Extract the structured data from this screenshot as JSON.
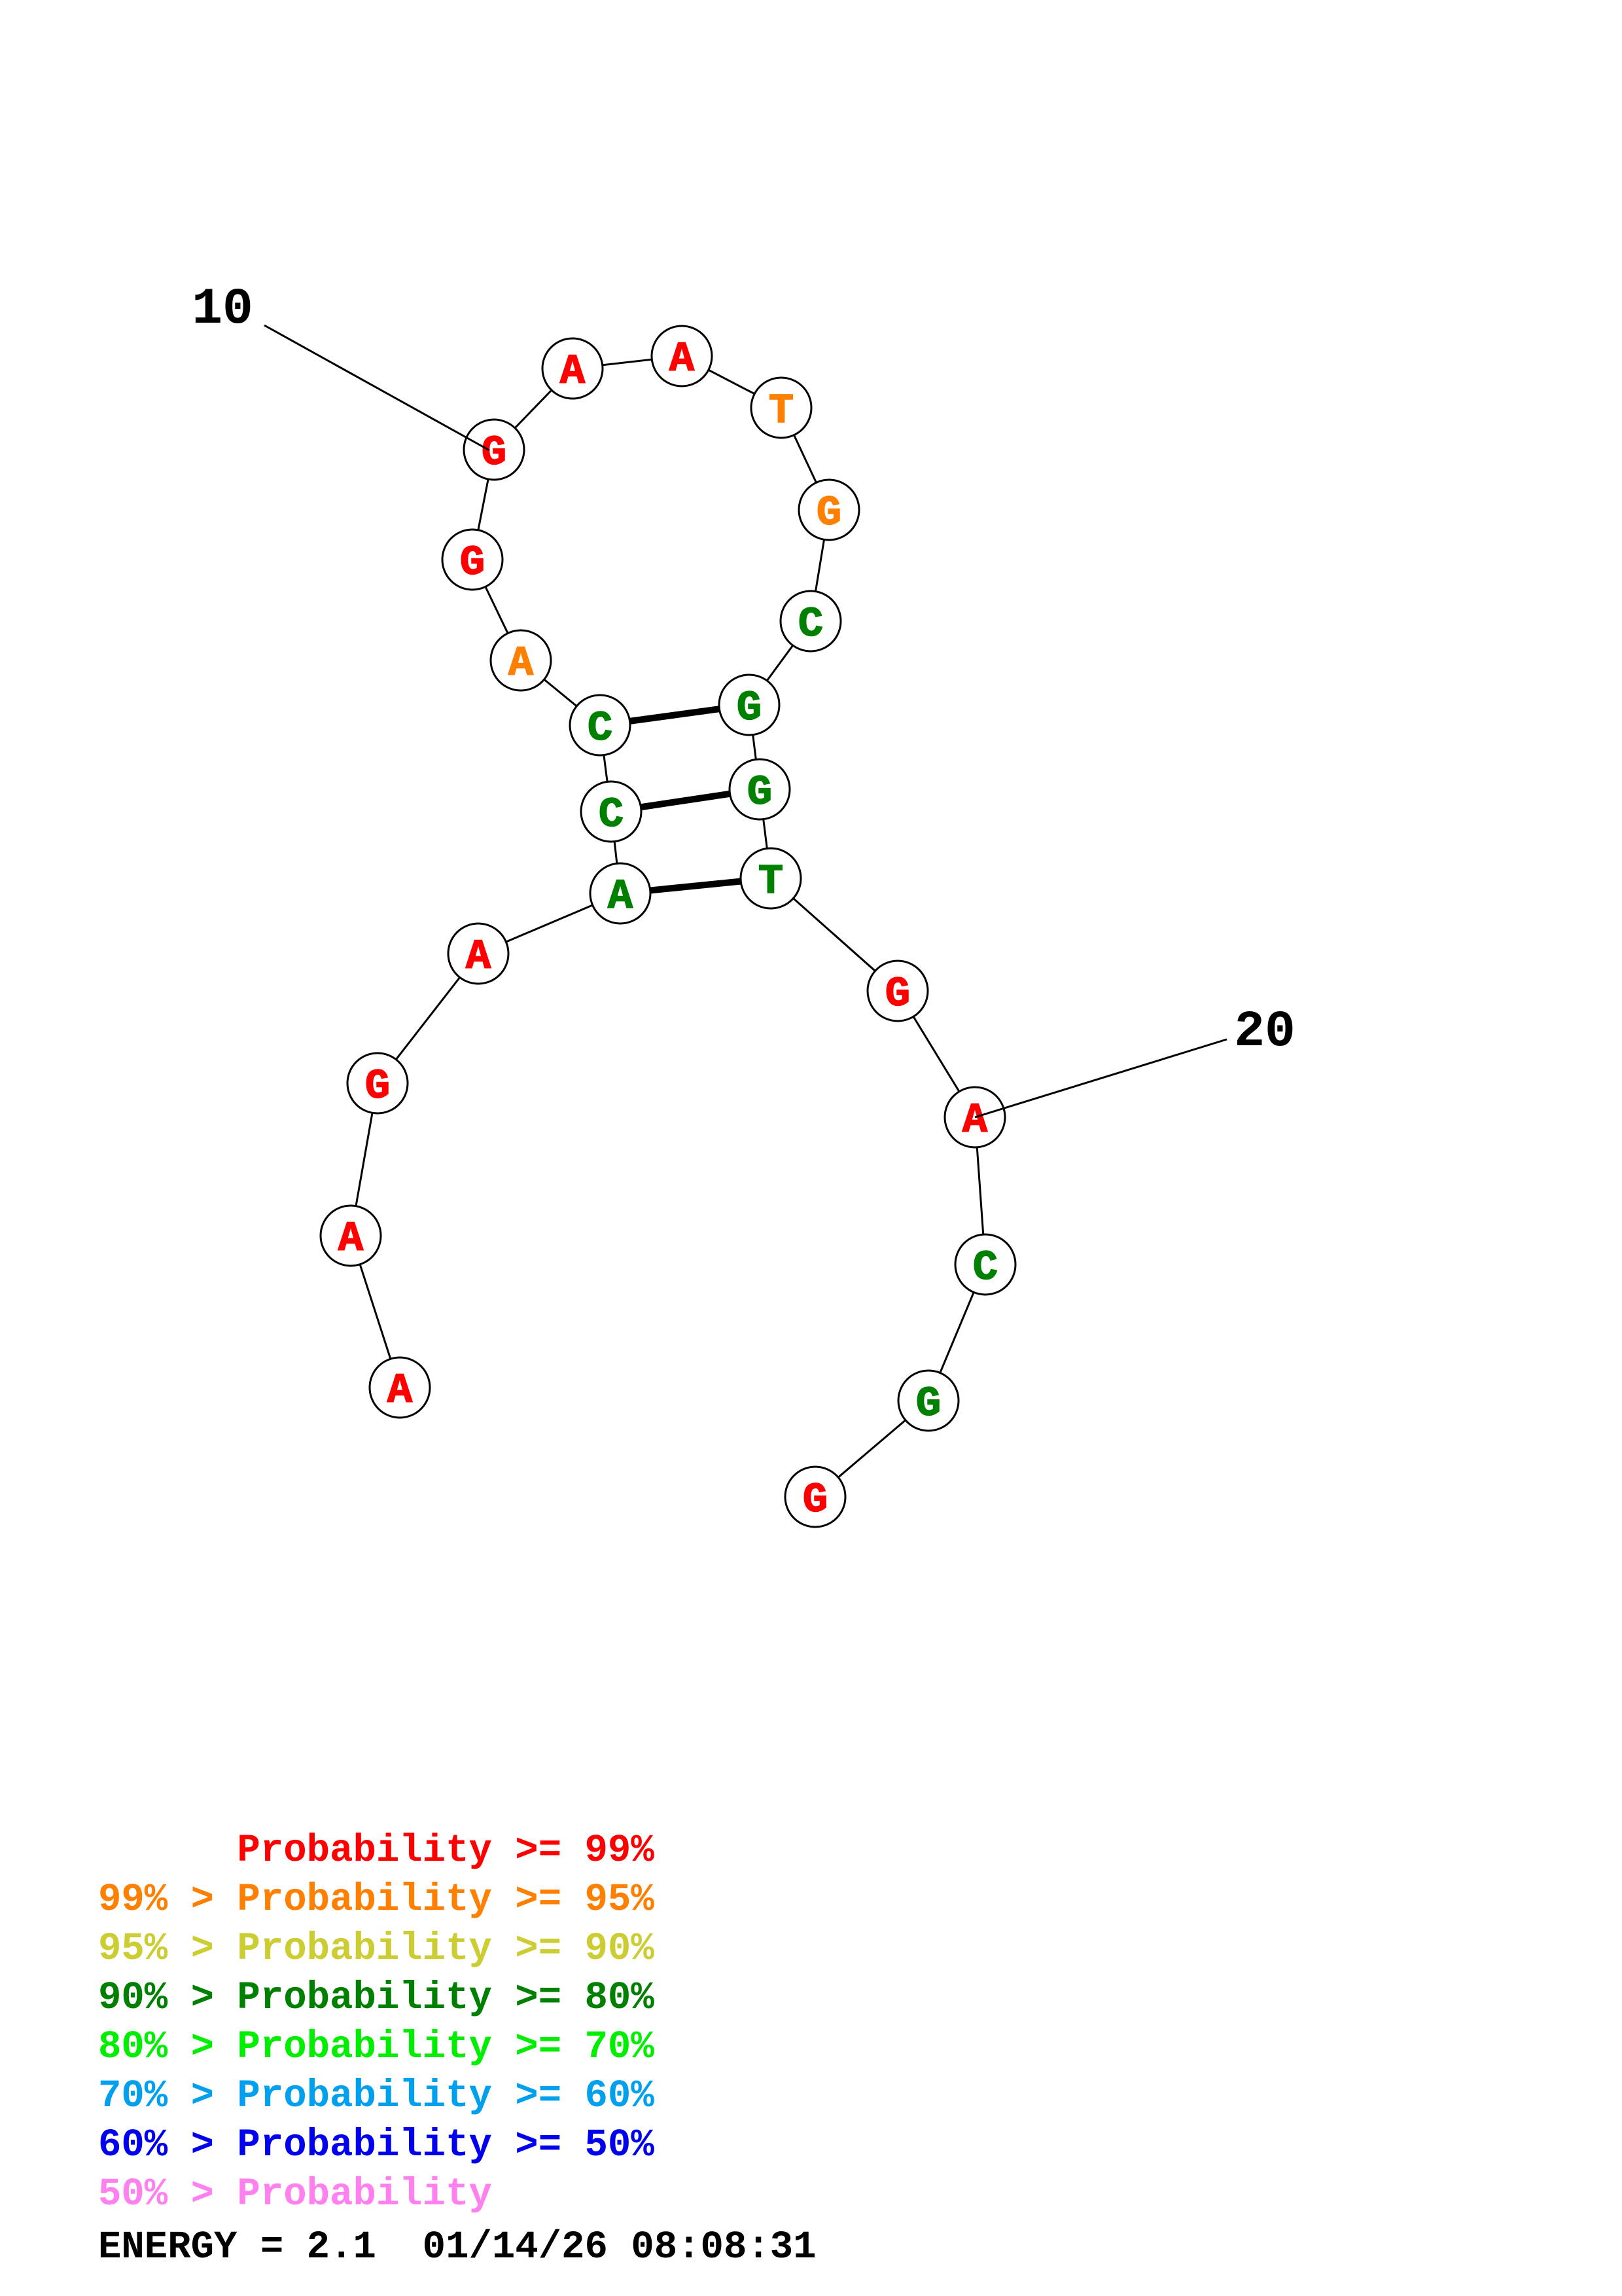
{
  "colors": {
    "p99": "#ff0000",
    "p95": "#ff8000",
    "p90": "#cccc33",
    "p80": "#008000",
    "p70": "#00ee00",
    "p60": "#00a0ee",
    "p50": "#0000ee",
    "p_low": "#ff80ee"
  },
  "position_labels": [
    {
      "text": "10"
    },
    {
      "text": "20"
    }
  ],
  "nucleotides": [
    {
      "base": "A",
      "color": "p99"
    },
    {
      "base": "A",
      "color": "p99"
    },
    {
      "base": "G",
      "color": "p99"
    },
    {
      "base": "A",
      "color": "p99"
    },
    {
      "base": "A",
      "color": "p80"
    },
    {
      "base": "C",
      "color": "p80"
    },
    {
      "base": "C",
      "color": "p80"
    },
    {
      "base": "A",
      "color": "p95"
    },
    {
      "base": "G",
      "color": "p99"
    },
    {
      "base": "G",
      "color": "p99"
    },
    {
      "base": "A",
      "color": "p99"
    },
    {
      "base": "A",
      "color": "p99"
    },
    {
      "base": "T",
      "color": "p95"
    },
    {
      "base": "G",
      "color": "p95"
    },
    {
      "base": "C",
      "color": "p80"
    },
    {
      "base": "G",
      "color": "p80"
    },
    {
      "base": "G",
      "color": "p80"
    },
    {
      "base": "T",
      "color": "p80"
    },
    {
      "base": "G",
      "color": "p99"
    },
    {
      "base": "A",
      "color": "p99"
    },
    {
      "base": "C",
      "color": "p80"
    },
    {
      "base": "G",
      "color": "p80"
    },
    {
      "base": "G",
      "color": "p99"
    }
  ],
  "base_pairs": [
    [
      5,
      16
    ],
    [
      6,
      15
    ],
    [
      4,
      17
    ]
  ],
  "legend": [
    {
      "text": "      Probability >= 99%",
      "color": "p99"
    },
    {
      "text": "99% > Probability >= 95%",
      "color": "p95"
    },
    {
      "text": "95% > Probability >= 90%",
      "color": "p90"
    },
    {
      "text": "90% > Probability >= 80%",
      "color": "p80"
    },
    {
      "text": "80% > Probability >= 70%",
      "color": "p70"
    },
    {
      "text": "70% > Probability >= 60%",
      "color": "p60"
    },
    {
      "text": "60% > Probability >= 50%",
      "color": "p50"
    },
    {
      "text": "50% > Probability",
      "color": "p_low"
    }
  ],
  "footer": {
    "energy": "ENERGY = 2.1  01/14/26 08:08:31"
  }
}
